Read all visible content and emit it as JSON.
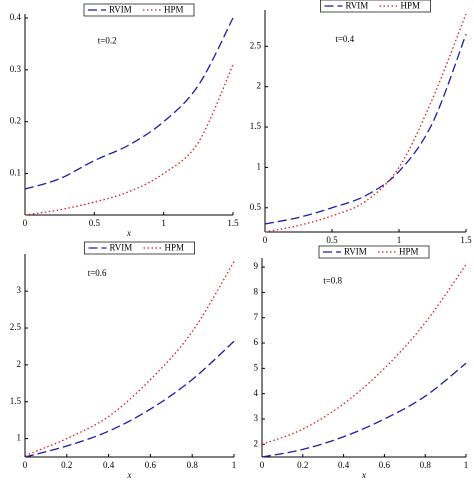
{
  "chart_data": [
    {
      "type": "line",
      "annotation": "t=0.2",
      "x_label": "x",
      "x": [
        0,
        0.25,
        0.5,
        0.75,
        1,
        1.25,
        1.5
      ],
      "series": [
        {
          "name": "RVIM",
          "color": "#1c1ca8",
          "values": [
            0.07,
            0.09,
            0.125,
            0.155,
            0.2,
            0.27,
            0.4
          ]
        },
        {
          "name": "HPM",
          "color": "#e01818",
          "values": [
            0.02,
            0.03,
            0.045,
            0.065,
            0.1,
            0.16,
            0.31
          ]
        }
      ],
      "xlim": [
        0,
        1.5
      ],
      "xticks": [
        0,
        0.5,
        1,
        1.5
      ],
      "ylim": [
        0.02,
        0.4
      ],
      "yticks": [
        0.1,
        0.2,
        0.3,
        0.4
      ]
    },
    {
      "type": "line",
      "annotation": "t=0.4",
      "x_label": "x",
      "x": [
        0,
        0.25,
        0.5,
        0.75,
        1,
        1.25,
        1.5
      ],
      "series": [
        {
          "name": "RVIM",
          "color": "#1c1ca8",
          "values": [
            0.3,
            0.38,
            0.5,
            0.65,
            0.95,
            1.55,
            2.65
          ]
        },
        {
          "name": "HPM",
          "color": "#e01818",
          "values": [
            0.2,
            0.28,
            0.4,
            0.58,
            1.0,
            1.85,
            2.9
          ]
        }
      ],
      "xlim": [
        0,
        1.5
      ],
      "xticks": [
        0,
        0.5,
        1,
        1.5
      ],
      "ylim": [
        0.2,
        2.9
      ],
      "yticks": [
        0.5,
        1,
        1.5,
        2,
        2.5
      ]
    },
    {
      "type": "line",
      "annotation": "t=0.6",
      "x_label": "x",
      "x": [
        0,
        0.2,
        0.4,
        0.6,
        0.8,
        1
      ],
      "series": [
        {
          "name": "RVIM",
          "color": "#1c1ca8",
          "values": [
            0.75,
            0.9,
            1.1,
            1.4,
            1.8,
            2.32
          ]
        },
        {
          "name": "HPM",
          "color": "#e01818",
          "values": [
            0.77,
            1.0,
            1.3,
            1.8,
            2.45,
            3.4
          ]
        }
      ],
      "xlim": [
        0,
        1
      ],
      "xticks": [
        0,
        0.2,
        0.4,
        0.6,
        0.8,
        1
      ],
      "ylim": [
        0.75,
        3.45
      ],
      "yticks": [
        1,
        1.5,
        2,
        2.5,
        3
      ]
    },
    {
      "type": "line",
      "annotation": "t=0.8",
      "x_label": "x",
      "x": [
        0,
        0.2,
        0.4,
        0.6,
        0.8,
        1
      ],
      "series": [
        {
          "name": "RVIM",
          "color": "#1c1ca8",
          "values": [
            1.5,
            1.8,
            2.3,
            3.0,
            3.9,
            5.2
          ]
        },
        {
          "name": "HPM",
          "color": "#e01818",
          "values": [
            2.0,
            2.6,
            3.6,
            5.0,
            6.8,
            9.1
          ]
        }
      ],
      "xlim": [
        0,
        1
      ],
      "xticks": [
        0,
        0.2,
        0.4,
        0.6,
        0.8,
        1
      ],
      "ylim": [
        1.5,
        9.2
      ],
      "yticks": [
        2,
        3,
        4,
        5,
        6,
        7,
        8,
        9
      ]
    }
  ]
}
